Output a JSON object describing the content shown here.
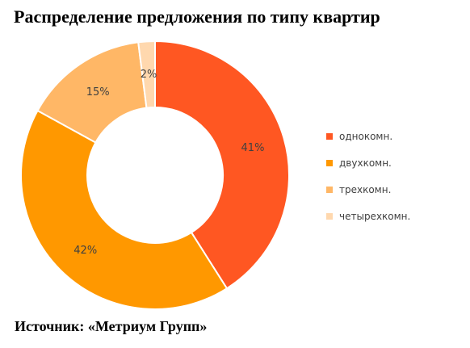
{
  "title": "Распределение предложения по типу квартир",
  "source": "Источник: «Метриум Групп»",
  "chart_data": {
    "type": "pie",
    "variant": "donut",
    "title": "Распределение предложения по типу квартир",
    "categories": [
      "однокомн.",
      "двухкомн.",
      "трехкомн.",
      "четырехкомн."
    ],
    "values": [
      41,
      42,
      15,
      2
    ],
    "labels": [
      "41%",
      "42%",
      "15%",
      "2%"
    ],
    "colors": [
      "#FF5722",
      "#FF9800",
      "#FFB766",
      "#FFD8AE"
    ],
    "legend_position": "right",
    "start_angle": "top",
    "direction": "clockwise"
  }
}
